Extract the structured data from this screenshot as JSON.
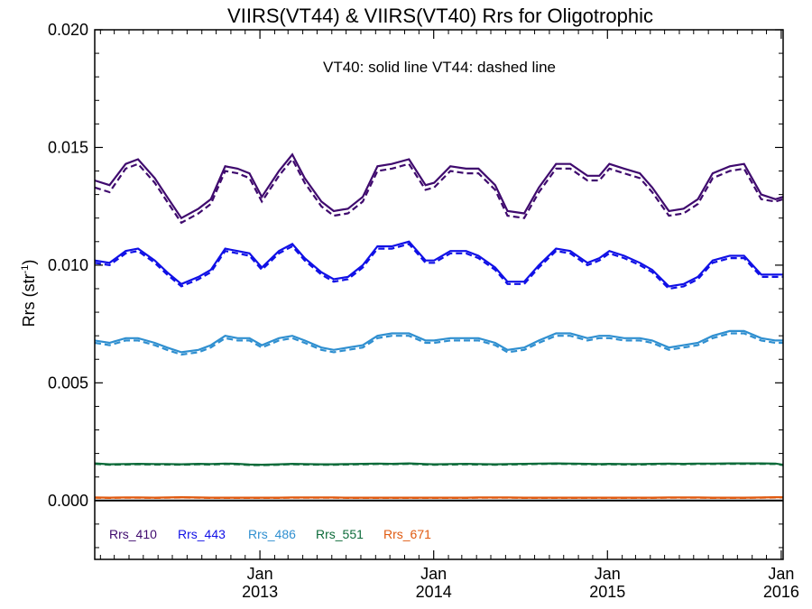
{
  "chart_data": {
    "type": "line",
    "title": "VIIRS(VT44) & VIIRS(VT40)  Rrs for Oligotrophic",
    "annotation": "VT40: solid line   VT44: dashed line",
    "ylabel": "Rrs (str",
    "ylabel_sup": "-1",
    "ylabel_close": ")",
    "ylim": [
      -0.0025,
      0.02
    ],
    "yticks": [
      "0.000",
      "0.005",
      "0.010",
      "0.015",
      "0.020"
    ],
    "ytick_values": [
      0.0,
      0.005,
      0.01,
      0.015,
      0.02
    ],
    "xlim": [
      "2012-01-20",
      "2016-01-05"
    ],
    "xticks": [
      {
        "date": "2013-01-01",
        "month": "Jan",
        "year": "2013"
      },
      {
        "date": "2014-01-01",
        "month": "Jan",
        "year": "2014"
      },
      {
        "date": "2015-01-01",
        "month": "Jan",
        "year": "2015"
      },
      {
        "date": "2016-01-01",
        "month": "Jan",
        "year": "2016"
      }
    ],
    "x": [
      "2012-01-20",
      "2012-02-20",
      "2012-03-25",
      "2012-04-20",
      "2012-05-25",
      "2012-06-20",
      "2012-07-20",
      "2012-08-25",
      "2012-09-20",
      "2012-10-20",
      "2012-11-15",
      "2012-12-10",
      "2013-01-05",
      "2013-02-10",
      "2013-03-10",
      "2013-04-05",
      "2013-05-10",
      "2013-06-05",
      "2013-07-05",
      "2013-08-05",
      "2013-09-05",
      "2013-10-05",
      "2013-11-10",
      "2013-12-15",
      "2014-01-02",
      "2014-02-05",
      "2014-03-10",
      "2014-04-05",
      "2014-05-10",
      "2014-06-05",
      "2014-07-10",
      "2014-08-10",
      "2014-09-15",
      "2014-10-15",
      "2014-11-20",
      "2014-12-15",
      "2015-01-05",
      "2015-02-05",
      "2015-03-10",
      "2015-04-05",
      "2015-05-10",
      "2015-06-10",
      "2015-07-10",
      "2015-08-10",
      "2015-09-15",
      "2015-10-15",
      "2015-11-20",
      "2015-12-20",
      "2016-01-05"
    ],
    "series": [
      {
        "name": "Rrs_410",
        "color": "#3f0a6e",
        "vt40": [
          0.0136,
          0.0134,
          0.0143,
          0.0145,
          0.0137,
          0.0129,
          0.012,
          0.0124,
          0.0128,
          0.0142,
          0.0141,
          0.0139,
          0.0129,
          0.014,
          0.0147,
          0.0137,
          0.0127,
          0.0123,
          0.0124,
          0.0129,
          0.0142,
          0.0143,
          0.0145,
          0.0134,
          0.0135,
          0.0142,
          0.0141,
          0.0141,
          0.0134,
          0.0123,
          0.0122,
          0.0133,
          0.0143,
          0.0143,
          0.0138,
          0.0138,
          0.0143,
          0.0141,
          0.0139,
          0.0133,
          0.0123,
          0.0124,
          0.0128,
          0.0139,
          0.0142,
          0.0143,
          0.013,
          0.0128,
          0.0129
        ],
        "vt44": [
          0.0133,
          0.0131,
          0.0141,
          0.0143,
          0.0135,
          0.0127,
          0.0118,
          0.0122,
          0.0126,
          0.014,
          0.0139,
          0.0137,
          0.0127,
          0.0138,
          0.0145,
          0.0135,
          0.0125,
          0.0121,
          0.0122,
          0.0127,
          0.014,
          0.0141,
          0.0143,
          0.0132,
          0.0133,
          0.014,
          0.0139,
          0.0139,
          0.0132,
          0.0121,
          0.012,
          0.0131,
          0.0141,
          0.0141,
          0.0136,
          0.0136,
          0.0141,
          0.0139,
          0.0137,
          0.0131,
          0.0121,
          0.0122,
          0.0126,
          0.0137,
          0.014,
          0.0141,
          0.0128,
          0.0127,
          0.0128
        ]
      },
      {
        "name": "Rrs_443",
        "color": "#1010e6",
        "vt40": [
          0.0102,
          0.0101,
          0.0106,
          0.0107,
          0.0102,
          0.0097,
          0.0092,
          0.0095,
          0.0098,
          0.0107,
          0.0106,
          0.0105,
          0.0099,
          0.0106,
          0.0109,
          0.0103,
          0.0097,
          0.0094,
          0.0095,
          0.01,
          0.0108,
          0.0108,
          0.011,
          0.0102,
          0.0102,
          0.0106,
          0.0106,
          0.0104,
          0.0099,
          0.0093,
          0.0093,
          0.01,
          0.0107,
          0.0106,
          0.0101,
          0.0103,
          0.0106,
          0.0104,
          0.0101,
          0.0098,
          0.0091,
          0.0092,
          0.0095,
          0.0102,
          0.0104,
          0.0104,
          0.0096,
          0.0096,
          0.0096
        ],
        "vt44": [
          0.0101,
          0.01,
          0.0105,
          0.0106,
          0.0101,
          0.0096,
          0.0091,
          0.0094,
          0.0097,
          0.0106,
          0.0105,
          0.0104,
          0.0098,
          0.0105,
          0.0108,
          0.0102,
          0.0096,
          0.0093,
          0.0094,
          0.0099,
          0.0107,
          0.0107,
          0.0109,
          0.0101,
          0.0101,
          0.0105,
          0.0105,
          0.0103,
          0.0098,
          0.0092,
          0.0092,
          0.0099,
          0.0106,
          0.0105,
          0.01,
          0.0102,
          0.0105,
          0.0103,
          0.01,
          0.0097,
          0.009,
          0.0091,
          0.0094,
          0.0101,
          0.0103,
          0.0103,
          0.0095,
          0.0095,
          0.0095
        ]
      },
      {
        "name": "Rrs_486",
        "color": "#2f8fd0",
        "vt40": [
          0.0068,
          0.0067,
          0.0069,
          0.0069,
          0.0067,
          0.0065,
          0.0063,
          0.0064,
          0.0066,
          0.007,
          0.0069,
          0.0069,
          0.0066,
          0.0069,
          0.007,
          0.0068,
          0.0065,
          0.0064,
          0.0065,
          0.0066,
          0.007,
          0.0071,
          0.0071,
          0.0068,
          0.0068,
          0.0069,
          0.0069,
          0.0069,
          0.0067,
          0.0064,
          0.0065,
          0.0068,
          0.0071,
          0.0071,
          0.0069,
          0.007,
          0.007,
          0.0069,
          0.0069,
          0.0068,
          0.0065,
          0.0066,
          0.0067,
          0.007,
          0.0072,
          0.0072,
          0.0069,
          0.0068,
          0.0068
        ],
        "vt44": [
          0.0067,
          0.0066,
          0.0068,
          0.0068,
          0.0066,
          0.0064,
          0.0062,
          0.0063,
          0.0065,
          0.0069,
          0.0068,
          0.0068,
          0.0065,
          0.0068,
          0.0069,
          0.0067,
          0.0064,
          0.0063,
          0.0064,
          0.0065,
          0.0069,
          0.007,
          0.007,
          0.0067,
          0.0067,
          0.0068,
          0.0068,
          0.0068,
          0.0066,
          0.0063,
          0.0064,
          0.0067,
          0.007,
          0.007,
          0.0068,
          0.0069,
          0.0069,
          0.0068,
          0.0068,
          0.0067,
          0.0064,
          0.0065,
          0.0066,
          0.0069,
          0.0071,
          0.0071,
          0.0068,
          0.0067,
          0.0067
        ]
      },
      {
        "name": "Rrs_551",
        "color": "#0d6b3a",
        "vt40": [
          0.00158,
          0.00154,
          0.00155,
          0.00156,
          0.00155,
          0.00155,
          0.00154,
          0.00156,
          0.00155,
          0.00157,
          0.00156,
          0.00153,
          0.00152,
          0.00154,
          0.00156,
          0.00155,
          0.00154,
          0.00154,
          0.00155,
          0.00156,
          0.00157,
          0.00156,
          0.00158,
          0.00155,
          0.00154,
          0.00155,
          0.00156,
          0.00155,
          0.00154,
          0.00155,
          0.00156,
          0.00157,
          0.00158,
          0.00157,
          0.00156,
          0.00155,
          0.00156,
          0.00155,
          0.00155,
          0.00156,
          0.00157,
          0.00156,
          0.00157,
          0.00157,
          0.00158,
          0.00158,
          0.00158,
          0.00157,
          0.00152
        ],
        "vt44": [
          0.00156,
          0.00152,
          0.00153,
          0.00154,
          0.00153,
          0.00153,
          0.00152,
          0.00154,
          0.00153,
          0.00155,
          0.00154,
          0.00151,
          0.0015,
          0.00152,
          0.00154,
          0.00153,
          0.00152,
          0.00152,
          0.00153,
          0.00154,
          0.00155,
          0.00154,
          0.00156,
          0.00153,
          0.00152,
          0.00153,
          0.00154,
          0.00153,
          0.00152,
          0.00153,
          0.00154,
          0.00155,
          0.00156,
          0.00155,
          0.00154,
          0.00153,
          0.00154,
          0.00153,
          0.00153,
          0.00154,
          0.00155,
          0.00154,
          0.00155,
          0.00155,
          0.00156,
          0.00156,
          0.00156,
          0.00155,
          0.0015
        ]
      },
      {
        "name": "Rrs_671",
        "color": "#e05a10",
        "vt40": [
          0.00013,
          0.00012,
          0.00013,
          0.00013,
          0.00012,
          0.00013,
          0.00014,
          0.00013,
          0.00012,
          0.00012,
          0.00012,
          0.00012,
          0.00012,
          0.00012,
          0.00013,
          0.00013,
          0.00013,
          0.00013,
          0.00012,
          0.00012,
          0.00012,
          0.00012,
          0.00012,
          0.00012,
          0.00012,
          0.00012,
          0.00012,
          0.00013,
          0.00013,
          0.00013,
          0.00012,
          0.00012,
          0.00012,
          0.00012,
          0.00012,
          0.00012,
          0.00012,
          0.00012,
          0.00012,
          0.00012,
          0.00013,
          0.00013,
          0.00013,
          0.00012,
          0.00012,
          0.00012,
          0.00013,
          0.00014,
          0.00014
        ],
        "vt44": [
          0.00012,
          0.00011,
          0.00012,
          0.00012,
          0.00011,
          0.00012,
          0.00013,
          0.00012,
          0.00011,
          0.00011,
          0.00011,
          0.00011,
          0.00011,
          0.00011,
          0.00012,
          0.00012,
          0.00012,
          0.00012,
          0.00011,
          0.00011,
          0.00011,
          0.00011,
          0.00011,
          0.00011,
          0.00011,
          0.00011,
          0.00011,
          0.00012,
          0.00012,
          0.00012,
          0.00011,
          0.00011,
          0.00011,
          0.00011,
          0.00011,
          0.00011,
          0.00011,
          0.00011,
          0.00011,
          0.00011,
          0.00012,
          0.00012,
          0.00012,
          0.00011,
          0.00011,
          0.00011,
          0.00012,
          0.00013,
          0.00013
        ]
      }
    ],
    "zero_line_color": "#000000",
    "grid": false,
    "legend": "bottom-left"
  }
}
